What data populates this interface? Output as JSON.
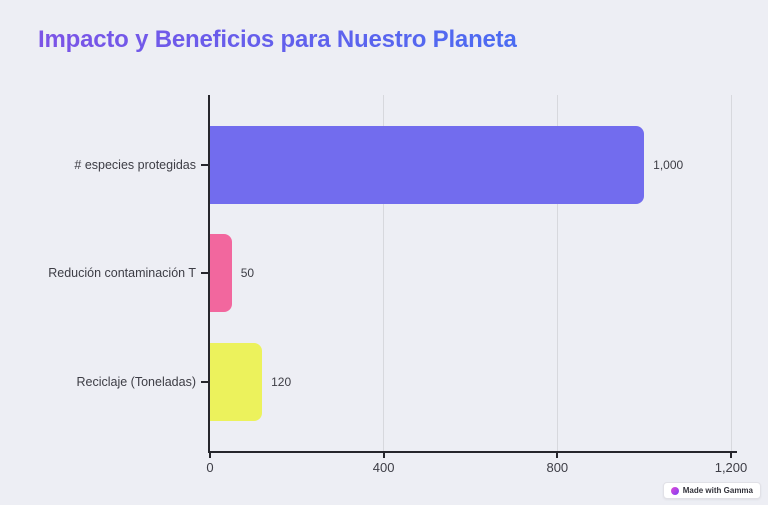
{
  "page": {
    "title": "Impacto y Beneficios para Nuestro Planeta",
    "background_color": "#edeef4",
    "title_gradient": [
      "#7d53e6",
      "#4a6cf2"
    ]
  },
  "chart_data": {
    "type": "bar",
    "orientation": "horizontal",
    "title": "Impacto y Beneficios para Nuestro Planeta",
    "categories": [
      "# especies protegidas",
      "Redución contaminación T",
      "Reciclaje (Toneladas)"
    ],
    "values": [
      1000,
      50,
      120
    ],
    "value_labels": [
      "1,000",
      "50",
      "120"
    ],
    "bar_colors": [
      "#726cee",
      "#f2679e",
      "#ecf25c"
    ],
    "xlim": [
      0,
      1200
    ],
    "x_ticks": [
      0,
      400,
      800,
      1200
    ],
    "x_tick_labels": [
      "0",
      "400",
      "800",
      "1,200"
    ],
    "grid": true,
    "legend": false,
    "axis_color": "#26262c",
    "gridline_color": "#d7d8dd",
    "label_color": "#3d3d45"
  },
  "badge": {
    "label": "Made with Gamma",
    "icon": "gamma-logo-icon"
  }
}
